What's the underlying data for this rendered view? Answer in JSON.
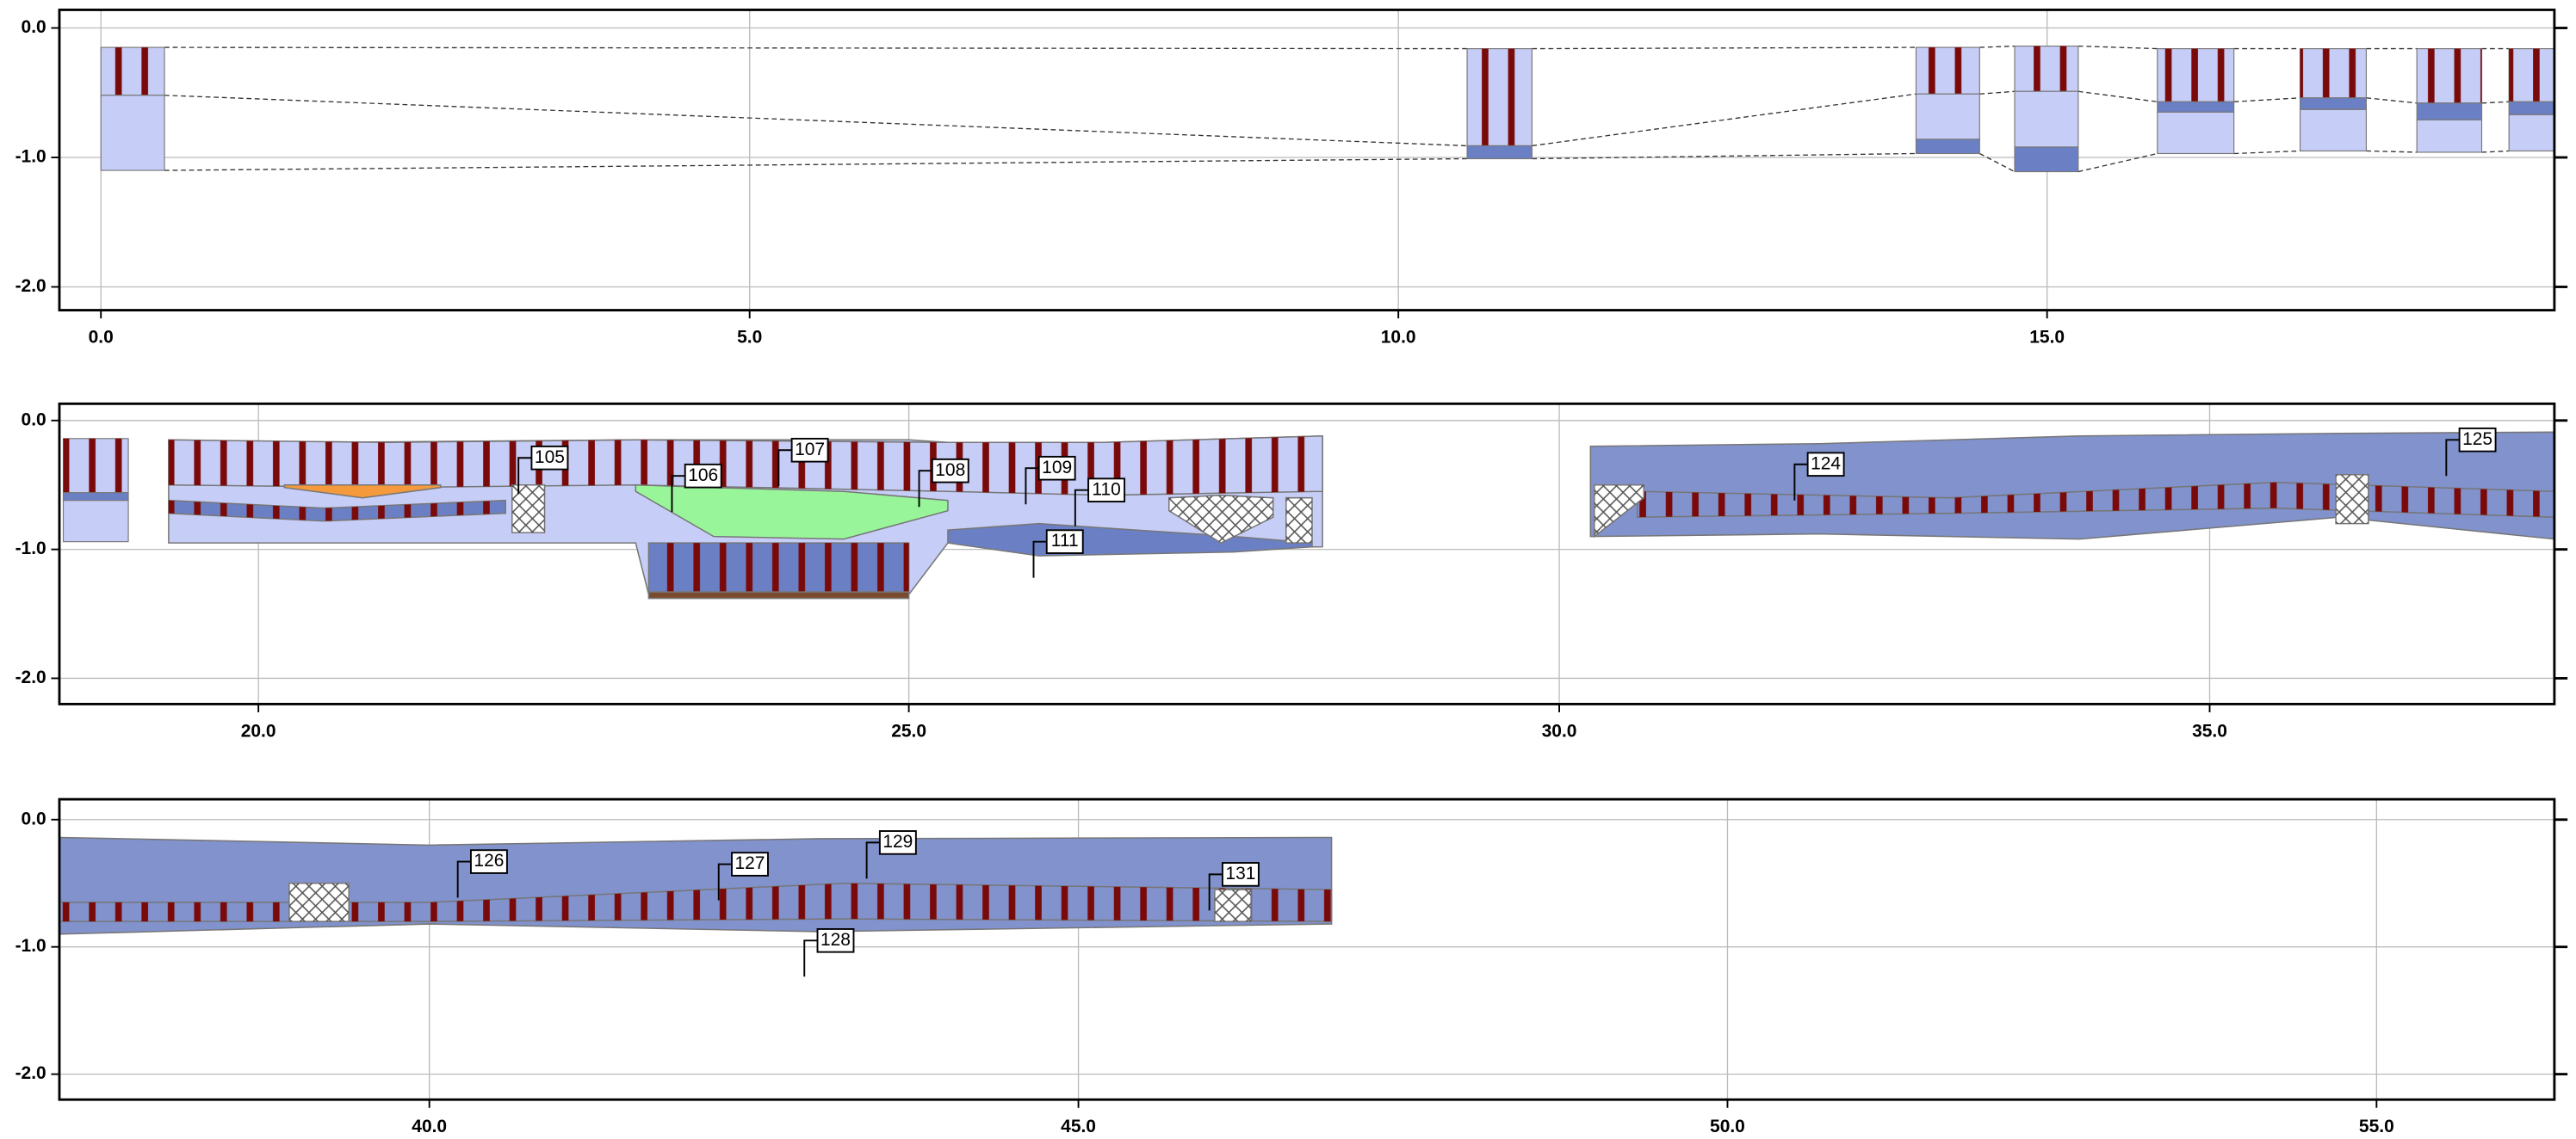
{
  "chart_data": [
    {
      "type": "section",
      "xlim": [
        -0.32,
        18.91
      ],
      "ylim": [
        -2.18,
        0.14
      ],
      "grid": true,
      "xticks": [
        {
          "value": 0,
          "label": "0.0"
        },
        {
          "value": 5,
          "label": "5.0"
        },
        {
          "value": 10,
          "label": "10.0"
        },
        {
          "value": 15,
          "label": "15.0"
        }
      ],
      "yticks": [
        {
          "value": 0,
          "label": "0.0"
        },
        {
          "value": -1,
          "label": "-1.0"
        },
        {
          "value": -2,
          "label": "-2.0"
        }
      ],
      "boreholes": [
        {
          "x": [
            0,
            0.49
          ],
          "layers": [
            {
              "top": -0.15,
              "bottom": -0.52,
              "color": "#c6cdf6",
              "pattern": "bars"
            },
            {
              "top": -0.52,
              "bottom": -1.1,
              "color": "#c6cdf6"
            }
          ]
        },
        {
          "x": [
            10.53,
            11.03
          ],
          "layers": [
            {
              "top": -0.16,
              "bottom": -0.91,
              "color": "#c6cdf6",
              "pattern": "bars"
            },
            {
              "top": -0.91,
              "bottom": -1.01,
              "color": "#6b80c4"
            }
          ]
        },
        {
          "x": [
            13.99,
            14.48
          ],
          "layers": [
            {
              "top": -0.15,
              "bottom": -0.51,
              "color": "#c6cdf6",
              "pattern": "bars"
            },
            {
              "top": -0.51,
              "bottom": -0.86,
              "color": "#c6cdf6"
            },
            {
              "top": -0.86,
              "bottom": -0.97,
              "color": "#6b80c4"
            }
          ]
        },
        {
          "x": [
            14.75,
            15.24
          ],
          "layers": [
            {
              "top": -0.14,
              "bottom": -0.49,
              "color": "#c6cdf6",
              "pattern": "bars"
            },
            {
              "top": -0.49,
              "bottom": -0.92,
              "color": "#c6cdf6"
            },
            {
              "top": -0.92,
              "bottom": -1.11,
              "color": "#6b80c4"
            }
          ]
        },
        {
          "x": [
            15.85,
            16.44
          ],
          "layers": [
            {
              "top": -0.16,
              "bottom": -0.57,
              "color": "#c6cdf6",
              "pattern": "bars"
            },
            {
              "top": -0.57,
              "bottom": -0.65,
              "color": "#6b80c4"
            },
            {
              "top": -0.65,
              "bottom": -0.97,
              "color": "#c6cdf6"
            }
          ]
        },
        {
          "x": [
            16.95,
            17.46
          ],
          "layers": [
            {
              "top": -0.16,
              "bottom": -0.54,
              "color": "#c6cdf6",
              "pattern": "bars"
            },
            {
              "top": -0.54,
              "bottom": -0.63,
              "color": "#6b80c4"
            },
            {
              "top": -0.63,
              "bottom": -0.95,
              "color": "#c6cdf6"
            }
          ]
        },
        {
          "x": [
            17.85,
            18.35
          ],
          "layers": [
            {
              "top": -0.16,
              "bottom": -0.58,
              "color": "#c6cdf6",
              "pattern": "bars"
            },
            {
              "top": -0.58,
              "bottom": -0.71,
              "color": "#6b80c4"
            },
            {
              "top": -0.71,
              "bottom": -0.96,
              "color": "#c6cdf6"
            }
          ]
        },
        {
          "x": [
            18.56,
            19.0
          ],
          "layers": [
            {
              "top": -0.16,
              "bottom": -0.57,
              "color": "#c6cdf6",
              "pattern": "bars"
            },
            {
              "top": -0.57,
              "bottom": -0.67,
              "color": "#6b80c4"
            },
            {
              "top": -0.67,
              "bottom": -0.95,
              "color": "#c6cdf6"
            }
          ]
        }
      ],
      "areas": [],
      "labels": []
    },
    {
      "type": "section",
      "xlim": [
        18.47,
        37.65
      ],
      "ylim": [
        -2.2,
        0.13
      ],
      "grid": true,
      "xticks": [
        {
          "value": 20,
          "label": "20.0"
        },
        {
          "value": 25,
          "label": "25.0"
        },
        {
          "value": 30,
          "label": "30.0"
        },
        {
          "value": 35,
          "label": "35.0"
        }
      ],
      "yticks": [
        {
          "value": 0,
          "label": "0.0"
        },
        {
          "value": -1,
          "label": "-1.0"
        },
        {
          "value": -2,
          "label": "-2.0"
        }
      ],
      "boreholes": [
        {
          "x": [
            18.5,
            19.0
          ],
          "layers": [
            {
              "top": -0.14,
              "bottom": -0.56,
              "color": "#c6cdf6",
              "pattern": "bars"
            },
            {
              "top": -0.56,
              "bottom": -0.62,
              "color": "#6b80c4"
            },
            {
              "top": -0.62,
              "bottom": -0.94,
              "color": "#c6cdf6"
            }
          ]
        }
      ],
      "areas": [
        {
          "color": "#c6cdf6",
          "x": [
            19.31,
            20.5,
            22.9,
            23.0,
            25.0,
            25.3,
            26.5,
            28.18
          ],
          "top": [
            -0.15,
            -0.17,
            -0.15,
            -0.15,
            -0.15,
            -0.17,
            -0.17,
            -0.12
          ],
          "bottom": [
            -0.95,
            -0.95,
            -0.95,
            -1.35,
            -1.35,
            -0.95,
            -1.0,
            -0.98
          ]
        },
        {
          "color": "#c6cdf6",
          "pattern": "bars",
          "x": [
            19.31,
            21.0,
            22.9,
            25.3,
            26.5,
            28.18
          ],
          "top": [
            -0.15,
            -0.17,
            -0.15,
            -0.17,
            -0.17,
            -0.12
          ],
          "bottom": [
            -0.5,
            -0.52,
            -0.5,
            -0.55,
            -0.58,
            -0.55
          ]
        },
        {
          "color": "#6b80c4",
          "pattern": "bars",
          "x": [
            19.31,
            20.5,
            21.9
          ],
          "top": [
            -0.62,
            -0.68,
            -0.62
          ],
          "bottom": [
            -0.72,
            -0.78,
            -0.72
          ]
        },
        {
          "color": "#f59a3c",
          "x": [
            20.2,
            20.8,
            21.4
          ],
          "top": [
            -0.5,
            -0.5,
            -0.5
          ],
          "bottom": [
            -0.52,
            -0.6,
            -0.52
          ]
        },
        {
          "color": "#99f59a",
          "x": [
            22.9,
            23.5,
            24.5,
            25.3
          ],
          "top": [
            -0.5,
            -0.52,
            -0.55,
            -0.62
          ],
          "bottom": [
            -0.55,
            -0.9,
            -0.92,
            -0.7
          ]
        },
        {
          "color": "#6b80c4",
          "pattern": "bars",
          "x": [
            23.0,
            25.0
          ],
          "top": [
            -0.95,
            -0.95
          ],
          "bottom": [
            -1.33,
            -1.33
          ]
        },
        {
          "color": "#7a4a2e",
          "x": [
            23.0,
            25.0
          ],
          "top": [
            -1.33,
            -1.33
          ],
          "bottom": [
            -1.38,
            -1.38
          ]
        },
        {
          "color": "#6b80c4",
          "x": [
            25.3,
            26.0,
            27.5,
            28.1
          ],
          "top": [
            -0.85,
            -0.8,
            -0.9,
            -0.95
          ],
          "bottom": [
            -0.95,
            -1.05,
            -1.02,
            -0.98
          ]
        },
        {
          "color": "#ffffff",
          "pattern": "cross",
          "x": [
            21.95,
            22.2
          ],
          "top": [
            -0.5,
            -0.5
          ],
          "bottom": [
            -0.87,
            -0.87
          ]
        },
        {
          "color": "#ffffff",
          "pattern": "cross",
          "x": [
            27.0,
            27.4,
            27.8
          ],
          "top": [
            -0.6,
            -0.58,
            -0.6
          ],
          "bottom": [
            -0.7,
            -0.95,
            -0.75
          ]
        },
        {
          "color": "#ffffff",
          "pattern": "cross",
          "x": [
            27.9,
            28.1
          ],
          "top": [
            -0.6,
            -0.6
          ],
          "bottom": [
            -0.95,
            -0.95
          ]
        },
        {
          "color": "#8192cc",
          "x": [
            30.24,
            32,
            34,
            36,
            37.65
          ],
          "top": [
            -0.2,
            -0.18,
            -0.12,
            -0.1,
            -0.09
          ],
          "bottom": [
            -0.9,
            -0.88,
            -0.92,
            -0.75,
            -0.92
          ]
        },
        {
          "color": "#8192cc",
          "pattern": "bars",
          "x": [
            30.6,
            33,
            35.5,
            37.65
          ],
          "top": [
            -0.55,
            -0.6,
            -0.48,
            -0.55
          ],
          "bottom": [
            -0.75,
            -0.72,
            -0.68,
            -0.75
          ]
        },
        {
          "color": "#ffffff",
          "pattern": "cross",
          "x": [
            30.27,
            30.65
          ],
          "top": [
            -0.5,
            -0.5
          ],
          "bottom": [
            -0.9,
            -0.6
          ]
        },
        {
          "color": "#ffffff",
          "pattern": "cross",
          "x": [
            35.97,
            36.22
          ],
          "top": [
            -0.42,
            -0.42
          ],
          "bottom": [
            -0.8,
            -0.8
          ]
        }
      ],
      "labels": [
        {
          "text": "105",
          "x": 22.1,
          "y": -0.29
        },
        {
          "text": "106",
          "x": 23.28,
          "y": -0.43
        },
        {
          "text": "107",
          "x": 24.1,
          "y": -0.23
        },
        {
          "text": "108",
          "x": 25.18,
          "y": -0.39
        },
        {
          "text": "109",
          "x": 26.0,
          "y": -0.37
        },
        {
          "text": "110",
          "x": 26.38,
          "y": -0.54
        },
        {
          "text": "111",
          "x": 26.06,
          "y": -0.94
        },
        {
          "text": "124",
          "x": 31.91,
          "y": -0.34
        },
        {
          "text": "125",
          "x": 36.92,
          "y": -0.15
        }
      ]
    },
    {
      "type": "section",
      "xlim": [
        37.15,
        56.37
      ],
      "ylim": [
        -2.2,
        0.16
      ],
      "grid": true,
      "xticks": [
        {
          "value": 40,
          "label": "40.0"
        },
        {
          "value": 45,
          "label": "45.0"
        },
        {
          "value": 50,
          "label": "50.0"
        },
        {
          "value": 55,
          "label": "55.0"
        }
      ],
      "yticks": [
        {
          "value": 0,
          "label": "0.0"
        },
        {
          "value": -1,
          "label": "-1.0"
        },
        {
          "value": -2,
          "label": "-2.0"
        }
      ],
      "boreholes": [],
      "areas": [
        {
          "color": "#8192cc",
          "x": [
            37.15,
            40,
            43,
            46.95
          ],
          "top": [
            -0.14,
            -0.2,
            -0.15,
            -0.14
          ],
          "bottom": [
            -0.9,
            -0.82,
            -0.88,
            -0.82
          ]
        },
        {
          "color": "#8192cc",
          "pattern": "bars",
          "x": [
            37.15,
            40,
            43.2,
            46.95
          ],
          "top": [
            -0.65,
            -0.65,
            -0.5,
            -0.55
          ],
          "bottom": [
            -0.8,
            -0.8,
            -0.78,
            -0.8
          ]
        },
        {
          "color": "#ffffff",
          "pattern": "cross",
          "x": [
            38.92,
            39.38
          ],
          "top": [
            -0.5,
            -0.5
          ],
          "bottom": [
            -0.8,
            -0.8
          ]
        },
        {
          "color": "#ffffff",
          "pattern": "cross",
          "x": [
            46.05,
            46.33
          ],
          "top": [
            -0.55,
            -0.55
          ],
          "bottom": [
            -0.8,
            -0.8
          ]
        }
      ],
      "labels": [
        {
          "text": "126",
          "x": 40.32,
          "y": -0.33
        },
        {
          "text": "127",
          "x": 42.33,
          "y": -0.35
        },
        {
          "text": "128",
          "x": 42.99,
          "y": -0.95
        },
        {
          "text": "129",
          "x": 43.47,
          "y": -0.18
        },
        {
          "text": "131",
          "x": 46.11,
          "y": -0.43
        }
      ]
    }
  ]
}
